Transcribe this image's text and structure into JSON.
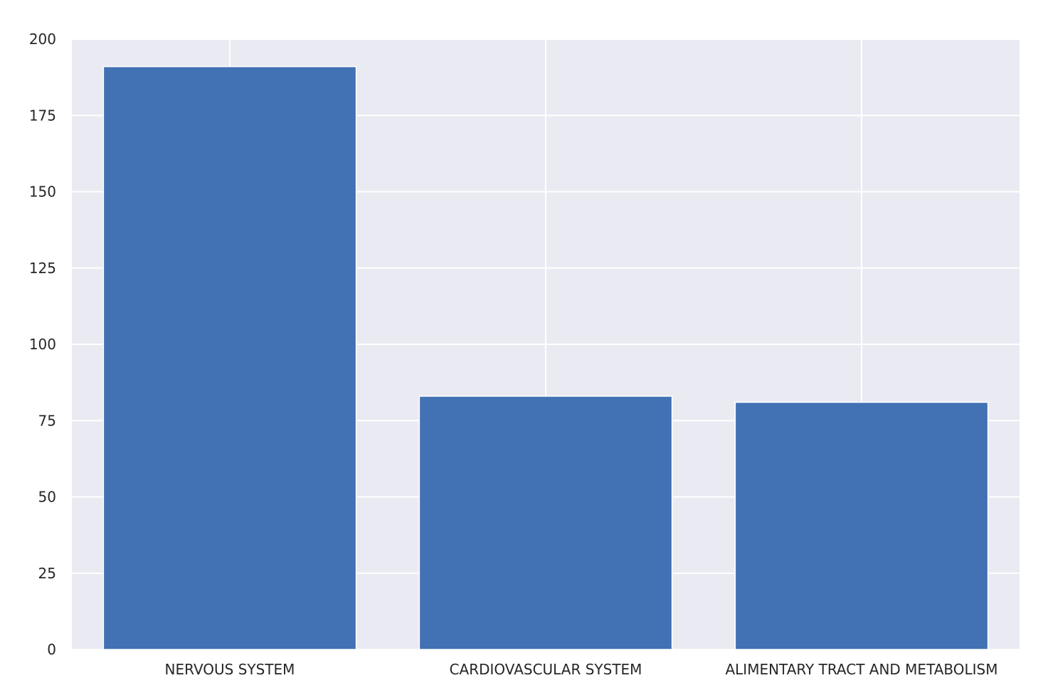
{
  "chart_data": {
    "type": "bar",
    "categories": [
      "NERVOUS SYSTEM",
      "CARDIOVASCULAR SYSTEM",
      "ALIMENTARY TRACT AND METABOLISM"
    ],
    "values": [
      191,
      83,
      81
    ],
    "title": "",
    "xlabel": "",
    "ylabel": "",
    "ylim": [
      0,
      200
    ],
    "yticks": [
      0,
      25,
      50,
      75,
      100,
      125,
      150,
      175,
      200
    ],
    "grid": true,
    "legend": "none",
    "colors": {
      "bar": "#4271b4",
      "plot_background": "#eaeaf2",
      "grid": "#ffffff",
      "text": "#262626"
    }
  }
}
